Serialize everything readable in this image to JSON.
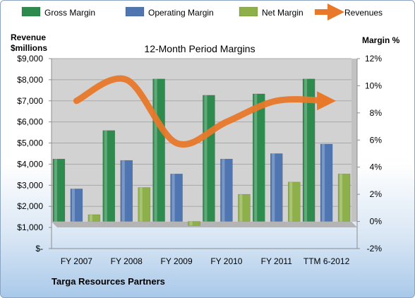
{
  "chart_data": {
    "type": "bar",
    "title": "12-Month Period Margins",
    "left_axis_label_line1": "Revenue",
    "left_axis_label_line2": "$millions",
    "right_axis_label": "Margin %",
    "footer": "Targa Resources Partners",
    "categories": [
      "FY 2007",
      "FY 2008",
      "FY 2009",
      "FY 2010",
      "FY 2011",
      "TTM 6-2012"
    ],
    "series": [
      {
        "name": "Gross Margin",
        "axis": "right",
        "color": "#2e8b4e",
        "values": [
          4.6,
          6.7,
          10.5,
          9.3,
          9.4,
          10.5
        ]
      },
      {
        "name": "Operating Margin",
        "axis": "right",
        "color": "#4f76b0",
        "values": [
          2.4,
          4.5,
          3.5,
          4.6,
          5.0,
          5.7
        ]
      },
      {
        "name": "Net Margin",
        "axis": "right",
        "color": "#8eb04a",
        "values": [
          0.5,
          2.5,
          -0.3,
          2.0,
          2.9,
          3.5
        ]
      },
      {
        "name": "Revenues",
        "axis": "left",
        "type": "line",
        "color": "#e8782a",
        "values": [
          7000,
          8000,
          5000,
          6000,
          7000,
          7000
        ]
      }
    ],
    "left_ylim": [
      0,
      9000
    ],
    "right_ylim": [
      -2,
      12
    ],
    "left_ticks": [
      "$9,000",
      "$8,000",
      "$7,000",
      "$6,000",
      "$5,000",
      "$4,000",
      "$3,000",
      "$2,000",
      "$1,000",
      "$-"
    ],
    "right_ticks": [
      "12%",
      "10%",
      "8%",
      "6%",
      "4%",
      "2%",
      "0%",
      "-2%"
    ],
    "legend_position": "top",
    "grid": true
  }
}
